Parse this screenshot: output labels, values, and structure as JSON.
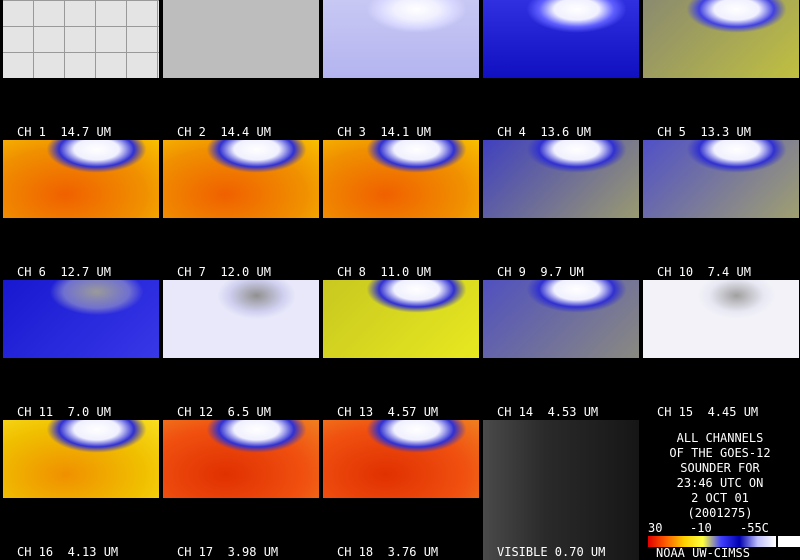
{
  "panels": [
    {
      "label": "CH 1  14.7 UM"
    },
    {
      "label": "CH 2  14.4 UM"
    },
    {
      "label": "CH 3  14.1 UM"
    },
    {
      "label": "CH 4  13.6 UM"
    },
    {
      "label": "CH 5  13.3 UM"
    },
    {
      "label": "CH 6  12.7 UM"
    },
    {
      "label": "CH 7  12.0 UM"
    },
    {
      "label": "CH 8  11.0 UM"
    },
    {
      "label": "CH 9  9.7 UM"
    },
    {
      "label": "CH 10  7.4 UM"
    },
    {
      "label": "CH 11  7.0 UM"
    },
    {
      "label": "CH 12  6.5 UM"
    },
    {
      "label": "CH 13  4.57 UM"
    },
    {
      "label": "CH 14  4.53 UM"
    },
    {
      "label": "CH 15  4.45 UM"
    },
    {
      "label": "CH 16  4.13 UM"
    },
    {
      "label": "CH 17  3.98 UM"
    },
    {
      "label": "CH 18  3.76 UM"
    },
    {
      "label": "VISIBLE 0.70 UM"
    }
  ],
  "info": {
    "lines": [
      "ALL CHANNELS",
      "OF THE GOES-12",
      "SOUNDER FOR",
      "23:46 UTC ON",
      "2 OCT 01",
      "(2001275)"
    ],
    "scale_labels": [
      "30",
      "-10",
      "-55C"
    ],
    "credit": "NOAA UW-CIMSS"
  }
}
